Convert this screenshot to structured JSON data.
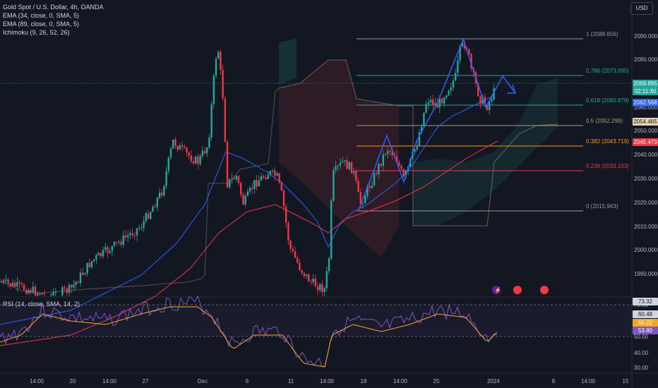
{
  "legend": {
    "symbol": "Gold Spot / U.S. Dollar, 4h, OANDA",
    "ema34": "EMA (34, close, 0, SMA, 5)",
    "ema89": "EMA (89, close, 0, SMA, 5)",
    "ichimoku": "Ichimoku (9, 26, 52, 26)"
  },
  "rsi_legend": "RSI (14, close, SMA, 14, 2)",
  "currency": "USD",
  "price_axis": [
    "2090.000",
    "2080.000",
    "2070.000",
    "2060.000",
    "2050.000",
    "2040.000",
    "2030.000",
    "2020.000",
    "2010.000",
    "2000.000",
    "1990.000"
  ],
  "rsi_axis": [
    "70.00",
    "60.00",
    "50.00",
    "40.00",
    "30.00"
  ],
  "time_axis": [
    "14:00",
    "20",
    "14:00",
    "27",
    "Dec",
    "6",
    "11",
    "14:00",
    "18",
    "14:00",
    "25",
    "2024",
    "8",
    "14:00",
    "15"
  ],
  "fib_levels": [
    {
      "label": "1 (2088.656)",
      "color": "#9598a1"
    },
    {
      "label": "0.786 (2073.095)",
      "color": "#26a69a"
    },
    {
      "label": "0.618 (2060.879)",
      "color": "#26a69a"
    },
    {
      "label": "0.5 (2052.299)",
      "color": "#a5a37a"
    },
    {
      "label": "0.382 (2043.719)",
      "color": "#ff9800"
    },
    {
      "label": "0.236 (2033.103)",
      "color": "#f23645"
    },
    {
      "label": "0 (2015.943)",
      "color": "#9598a1"
    }
  ],
  "price_labels": [
    {
      "text": "2069.895",
      "bg": "#26a69a"
    },
    {
      "text": "02:11:30",
      "bg": "#26a69a"
    },
    {
      "text": "2062.568",
      "bg": "#2962ff"
    },
    {
      "text": "2054.465",
      "bg": "#e8d5b0"
    },
    {
      "text": "2045.473",
      "bg": "#f23645"
    }
  ],
  "rsi_labels": [
    {
      "text": "73.32",
      "bg": "#d1d4dc"
    },
    {
      "text": "60.48",
      "bg": "#d1d4dc"
    },
    {
      "text": "55.22",
      "bg": "#f5a623"
    },
    {
      "text": "53.80",
      "bg": "#7e57c2"
    }
  ],
  "colors": {
    "up": "#26a69a",
    "down": "#f23645",
    "ema34": "#2962ff",
    "ema89": "#f23645",
    "rsi": "#7e57c2",
    "rsi_ma": "#f5a623"
  }
}
